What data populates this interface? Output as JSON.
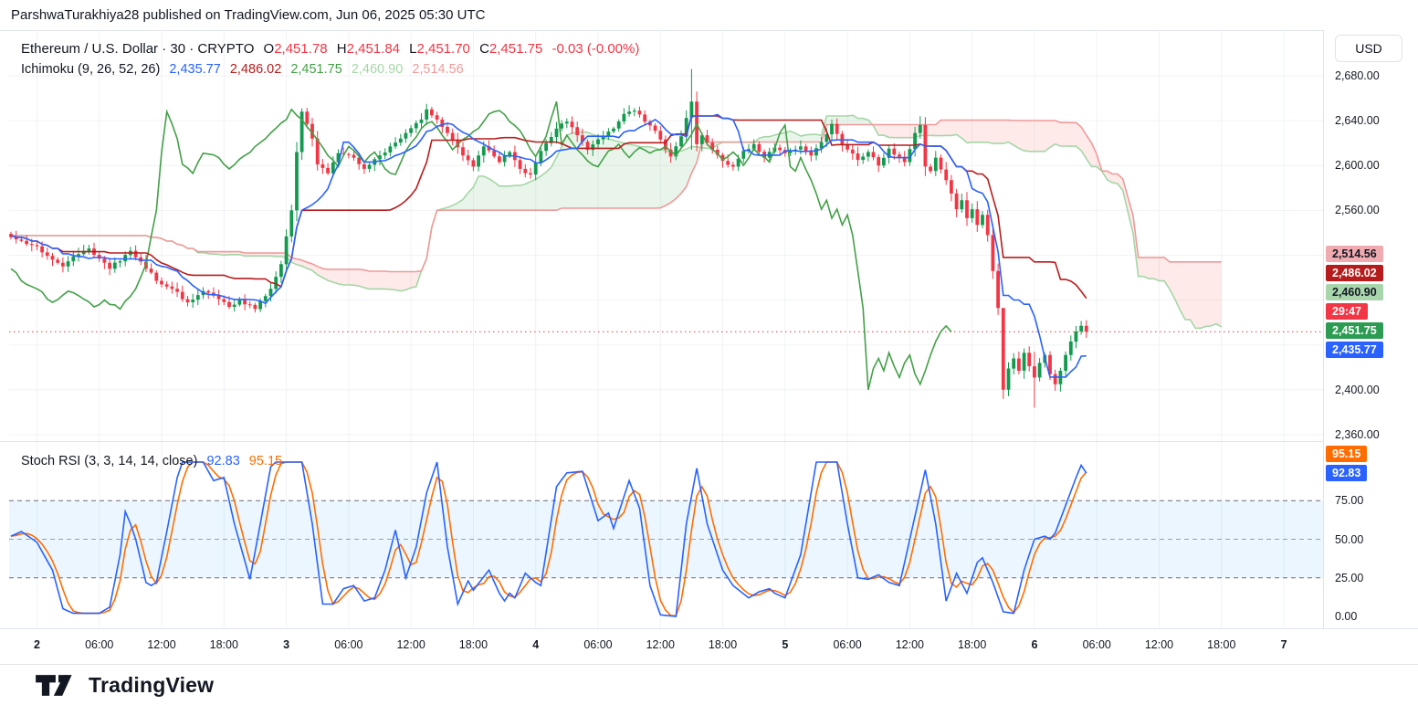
{
  "header": {
    "publisher_line": "ParshwaTurakhiya28 published on TradingView.com, Jun 06, 2025 05:30 UTC"
  },
  "symbol_legend": {
    "title": "Ethereum / U.S. Dollar · 30 · CRYPTO",
    "o_label": "O",
    "o": "2,451.78",
    "h_label": "H",
    "h": "2,451.84",
    "l_label": "L",
    "l": "2,451.70",
    "c_label": "C",
    "c": "2,451.75",
    "change": "-0.03 (-0.00%)"
  },
  "ichimoku_legend": {
    "title": "Ichimoku (9, 26, 52, 26)",
    "conversion": "2,435.77",
    "base": "2,486.02",
    "lagging": "2,451.75",
    "lead_a": "2,460.90",
    "lead_b": "2,514.56"
  },
  "stoch_legend": {
    "title": "Stoch RSI (3, 3, 14, 14, close)",
    "k": "92.83",
    "d": "95.15"
  },
  "axis": {
    "currency_button": "USD",
    "price_ticks": [
      {
        "label": "2,680.00",
        "price": 2680
      },
      {
        "label": "2,640.00",
        "price": 2640
      },
      {
        "label": "2,600.00",
        "price": 2600
      },
      {
        "label": "2,560.00",
        "price": 2560
      },
      {
        "label": "2,400.00",
        "price": 2400
      },
      {
        "label": "2,360.00",
        "price": 2360
      }
    ],
    "stoch_ticks": [
      {
        "label": "75.00",
        "value": 75
      },
      {
        "label": "50.00",
        "value": 50
      },
      {
        "label": "25.00",
        "value": 25
      },
      {
        "label": "0.00",
        "value": 0
      }
    ],
    "price_tags": [
      {
        "text": "2,435.77",
        "price": 2435.77,
        "bg": "#2962ff",
        "fg": "#ffffff",
        "name": "tenkan-price-tag"
      },
      {
        "text": "2,451.75",
        "price": 2451.75,
        "bg": "#2c9c53",
        "fg": "#ffffff",
        "name": "current-price-tag"
      },
      {
        "text": "29:47",
        "price": 2451.75,
        "bg": "#f23645",
        "fg": "#ffffff",
        "name": "countdown-tag"
      },
      {
        "text": "2,460.90",
        "price": 2460.9,
        "bg": "#a8d5ab",
        "fg": "#131722",
        "name": "senkou-a-price-tag"
      },
      {
        "text": "2,486.02",
        "price": 2486.02,
        "bg": "#b71c1c",
        "fg": "#ffffff",
        "name": "kijun-price-tag"
      },
      {
        "text": "2,514.56",
        "price": 2514.56,
        "bg": "#f0abb1",
        "fg": "#131722",
        "name": "senkou-b-price-tag"
      }
    ],
    "stoch_tags": [
      {
        "text": "92.83",
        "value": 92.83,
        "bg": "#2962ff",
        "fg": "#ffffff",
        "name": "stoch-k-tag"
      },
      {
        "text": "95.15",
        "value": 95.15,
        "bg": "#ff6d00",
        "fg": "#ffffff",
        "name": "stoch-d-tag"
      }
    ],
    "time_ticks": [
      {
        "label": "2",
        "bar": 5,
        "major": true
      },
      {
        "label": "06:00",
        "bar": 17
      },
      {
        "label": "12:00",
        "bar": 29
      },
      {
        "label": "18:00",
        "bar": 41
      },
      {
        "label": "3",
        "bar": 53,
        "major": true
      },
      {
        "label": "06:00",
        "bar": 65
      },
      {
        "label": "12:00",
        "bar": 77
      },
      {
        "label": "18:00",
        "bar": 89
      },
      {
        "label": "4",
        "bar": 101,
        "major": true
      },
      {
        "label": "06:00",
        "bar": 113
      },
      {
        "label": "12:00",
        "bar": 125
      },
      {
        "label": "18:00",
        "bar": 137
      },
      {
        "label": "5",
        "bar": 149,
        "major": true
      },
      {
        "label": "06:00",
        "bar": 161
      },
      {
        "label": "12:00",
        "bar": 173
      },
      {
        "label": "18:00",
        "bar": 185
      },
      {
        "label": "6",
        "bar": 197,
        "major": true
      },
      {
        "label": "06:00",
        "bar": 209
      },
      {
        "label": "12:00",
        "bar": 221
      },
      {
        "label": "18:00",
        "bar": 233
      },
      {
        "label": "7",
        "bar": 245,
        "major": true
      }
    ]
  },
  "footer": {
    "brand": "TradingView"
  },
  "colors": {
    "up": "#129a4e",
    "down": "#f23645",
    "tenkan": "#2962ff",
    "kijun": "#b71c1c",
    "chikou": "#43a047",
    "senkou_a": "#a5d6a7",
    "senkou_b": "#ef9a9a",
    "cloud_green": "rgba(76,175,80,0.12)",
    "cloud_red": "rgba(244,67,54,0.11)",
    "stoch_k": "#2962ff",
    "stoch_d": "#ff6d00",
    "stoch_band_fill": "rgba(33,150,243,0.09)",
    "stoch_band_line": "#6a6d78",
    "stoch_mid_line": "#9aa0aa",
    "grid": "#f0f2f6",
    "price_line": "#f23645",
    "text": "#131722"
  },
  "chart_data": {
    "type": "candlestick+ichimoku+stochrsi",
    "title": "Ethereum / U.S. Dollar",
    "interval_minutes": 30,
    "exchange_type": "CRYPTO",
    "ohlc_current": {
      "open": 2451.78,
      "high": 2451.84,
      "low": 2451.7,
      "close": 2451.75,
      "change": -0.03,
      "change_pct": -0.0
    },
    "ichimoku_params": {
      "conversion": 9,
      "base": 26,
      "lagging": 26,
      "lead_b": 52,
      "displacement": 26
    },
    "ichimoku_current": {
      "conversion": 2435.77,
      "base": 2486.02,
      "lagging": 2451.75,
      "lead_a": 2460.9,
      "lead_b": 2514.56
    },
    "stoch_rsi_params": {
      "smooth_k": 3,
      "smooth_d": 3,
      "rsi_len": 14,
      "stoch_len": 14,
      "source": "close"
    },
    "stoch_rsi_current": {
      "k": 92.83,
      "d": 95.15
    },
    "current_price": 2451.75,
    "countdown": "29:47",
    "price_axis_range": [
      2360,
      2680
    ],
    "stoch_axis_range": [
      0,
      100
    ],
    "stoch_bands": [
      75,
      50,
      25
    ],
    "bars_visible": 208,
    "candles": {
      "close_anchors": [
        [
          0,
          2536
        ],
        [
          3,
          2530
        ],
        [
          5,
          2528
        ],
        [
          8,
          2516
        ],
        [
          10,
          2510
        ],
        [
          13,
          2521
        ],
        [
          15,
          2526
        ],
        [
          19,
          2508
        ],
        [
          23,
          2524
        ],
        [
          26,
          2508
        ],
        [
          29,
          2494
        ],
        [
          31,
          2490
        ],
        [
          34,
          2478
        ],
        [
          37,
          2488
        ],
        [
          39,
          2484
        ],
        [
          42,
          2474
        ],
        [
          44,
          2480
        ],
        [
          47,
          2472
        ],
        [
          50,
          2490
        ],
        [
          52,
          2512
        ],
        [
          54,
          2560
        ],
        [
          55,
          2612
        ],
        [
          56,
          2648
        ],
        [
          58,
          2624
        ],
        [
          59,
          2601
        ],
        [
          61,
          2593
        ],
        [
          63,
          2611
        ],
        [
          66,
          2607
        ],
        [
          68,
          2597
        ],
        [
          71,
          2609
        ],
        [
          73,
          2617
        ],
        [
          76,
          2629
        ],
        [
          79,
          2641
        ],
        [
          80,
          2650
        ],
        [
          82,
          2641
        ],
        [
          84,
          2629
        ],
        [
          87,
          2609
        ],
        [
          89,
          2599
        ],
        [
          91,
          2617
        ],
        [
          94,
          2603
        ],
        [
          96,
          2612
        ],
        [
          98,
          2597
        ],
        [
          100,
          2592
        ],
        [
          102,
          2613
        ],
        [
          105,
          2633
        ],
        [
          107,
          2639
        ],
        [
          109,
          2627
        ],
        [
          111,
          2614
        ],
        [
          114,
          2626
        ],
        [
          116,
          2633
        ],
        [
          118,
          2646
        ],
        [
          120,
          2649
        ],
        [
          122,
          2639
        ],
        [
          124,
          2631
        ],
        [
          127,
          2608
        ],
        [
          129,
          2626
        ],
        [
          131,
          2657
        ],
        [
          132,
          2619
        ],
        [
          133,
          2627
        ],
        [
          135,
          2614
        ],
        [
          137,
          2604
        ],
        [
          139,
          2599
        ],
        [
          141,
          2613
        ],
        [
          143,
          2619
        ],
        [
          145,
          2607
        ],
        [
          147,
          2616
        ],
        [
          149,
          2611
        ],
        [
          152,
          2617
        ],
        [
          154,
          2609
        ],
        [
          156,
          2621
        ],
        [
          158,
          2637
        ],
        [
          160,
          2619
        ],
        [
          163,
          2605
        ],
        [
          165,
          2612
        ],
        [
          167,
          2600
        ],
        [
          169,
          2615
        ],
        [
          172,
          2603
        ],
        [
          174,
          2629
        ],
        [
          175,
          2636
        ],
        [
          176,
          2599
        ],
        [
          177,
          2595
        ],
        [
          178,
          2607
        ],
        [
          180,
          2587
        ],
        [
          181,
          2575
        ],
        [
          182,
          2561
        ],
        [
          183,
          2569
        ],
        [
          184,
          2553
        ],
        [
          185,
          2561
        ],
        [
          186,
          2547
        ],
        [
          187,
          2556
        ],
        [
          188,
          2538
        ],
        [
          189,
          2506
        ],
        [
          190,
          2473
        ],
        [
          191,
          2400
        ],
        [
          192,
          2419
        ],
        [
          193,
          2428
        ],
        [
          194,
          2417
        ],
        [
          195,
          2433
        ],
        [
          196,
          2421
        ],
        [
          197,
          2411
        ],
        [
          198,
          2424
        ],
        [
          199,
          2431
        ],
        [
          200,
          2414
        ],
        [
          201,
          2405
        ],
        [
          202,
          2417
        ],
        [
          203,
          2431
        ],
        [
          204,
          2443
        ],
        [
          205,
          2452
        ],
        [
          206,
          2457
        ],
        [
          207,
          2451.75
        ]
      ],
      "wick_overrides": {
        "56": [
          2651,
          2605
        ],
        "80": [
          2655,
          2636
        ],
        "131": [
          2686,
          2614
        ],
        "175": [
          2644,
          2624
        ],
        "191": [
          2473,
          2392
        ],
        "197": [
          2434,
          2384
        ]
      }
    },
    "stoch_rsi_k_anchors": [
      [
        0,
        52
      ],
      [
        2,
        55
      ],
      [
        5,
        48
      ],
      [
        8,
        30
      ],
      [
        10,
        5
      ],
      [
        12,
        2
      ],
      [
        17,
        2
      ],
      [
        19,
        6
      ],
      [
        21,
        40
      ],
      [
        22,
        68
      ],
      [
        23,
        60
      ],
      [
        24,
        50
      ],
      [
        26,
        22
      ],
      [
        27,
        20
      ],
      [
        28,
        22
      ],
      [
        30,
        55
      ],
      [
        32,
        90
      ],
      [
        33,
        100
      ],
      [
        37,
        100
      ],
      [
        39,
        88
      ],
      [
        41,
        90
      ],
      [
        43,
        60
      ],
      [
        46,
        24
      ],
      [
        48,
        60
      ],
      [
        50,
        97
      ],
      [
        51,
        100
      ],
      [
        56,
        100
      ],
      [
        58,
        60
      ],
      [
        60,
        8
      ],
      [
        62,
        8
      ],
      [
        64,
        18
      ],
      [
        66,
        20
      ],
      [
        68,
        10
      ],
      [
        70,
        12
      ],
      [
        72,
        30
      ],
      [
        74,
        56
      ],
      [
        76,
        25
      ],
      [
        78,
        45
      ],
      [
        80,
        80
      ],
      [
        82,
        100
      ],
      [
        84,
        45
      ],
      [
        86,
        8
      ],
      [
        88,
        23
      ],
      [
        89,
        17
      ],
      [
        92,
        30
      ],
      [
        94,
        15
      ],
      [
        95,
        10
      ],
      [
        96,
        15
      ],
      [
        97,
        12
      ],
      [
        99,
        28
      ],
      [
        101,
        22
      ],
      [
        102,
        20
      ],
      [
        105,
        84
      ],
      [
        107,
        93
      ],
      [
        110,
        94
      ],
      [
        113,
        62
      ],
      [
        115,
        67
      ],
      [
        116,
        57
      ],
      [
        119,
        88
      ],
      [
        121,
        70
      ],
      [
        123,
        20
      ],
      [
        125,
        1
      ],
      [
        128,
        0
      ],
      [
        130,
        60
      ],
      [
        132,
        96
      ],
      [
        134,
        60
      ],
      [
        137,
        30
      ],
      [
        139,
        20
      ],
      [
        142,
        12
      ],
      [
        144,
        16
      ],
      [
        146,
        18
      ],
      [
        147,
        15
      ],
      [
        149,
        12
      ],
      [
        152,
        40
      ],
      [
        155,
        100
      ],
      [
        159,
        100
      ],
      [
        161,
        60
      ],
      [
        163,
        25
      ],
      [
        165,
        24
      ],
      [
        167,
        27
      ],
      [
        169,
        22
      ],
      [
        171,
        20
      ],
      [
        173,
        50
      ],
      [
        176,
        95
      ],
      [
        178,
        60
      ],
      [
        180,
        10
      ],
      [
        182,
        28
      ],
      [
        184,
        15
      ],
      [
        186,
        35
      ],
      [
        187,
        38
      ],
      [
        189,
        22
      ],
      [
        191,
        3
      ],
      [
        193,
        2
      ],
      [
        195,
        30
      ],
      [
        197,
        50
      ],
      [
        199,
        52
      ],
      [
        200,
        50
      ],
      [
        201,
        54
      ],
      [
        203,
        72
      ],
      [
        205,
        90
      ],
      [
        206,
        98
      ],
      [
        207,
        92.83
      ]
    ]
  }
}
